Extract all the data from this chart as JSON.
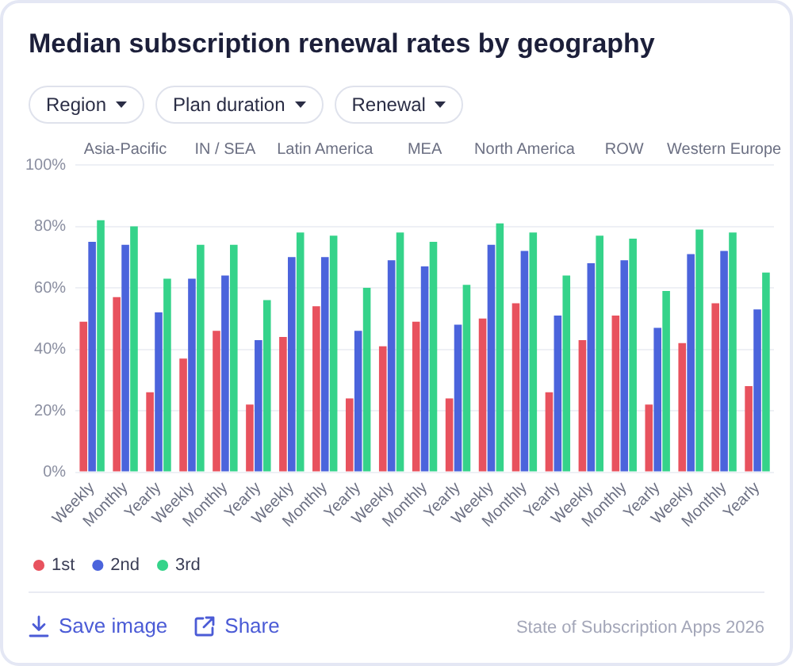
{
  "chart_data": {
    "type": "bar",
    "title": "Median subscription renewal rates by geography",
    "categories": [
      "Weekly",
      "Monthly",
      "Yearly",
      "Weekly",
      "Monthly",
      "Yearly",
      "Weekly",
      "Monthly",
      "Yearly",
      "Weekly",
      "Monthly",
      "Yearly",
      "Weekly",
      "Monthly",
      "Yearly",
      "Weekly",
      "Monthly",
      "Yearly",
      "Weekly",
      "Monthly",
      "Yearly"
    ],
    "series": [
      {
        "name": "1st",
        "color": "#e8525e",
        "values": [
          49,
          57,
          26,
          37,
          46,
          22,
          44,
          54,
          24,
          41,
          49,
          24,
          50,
          55,
          26,
          43,
          51,
          22,
          42,
          55,
          28
        ]
      },
      {
        "name": "2nd",
        "color": "#4b64dc",
        "values": [
          75,
          74,
          52,
          63,
          64,
          43,
          70,
          70,
          46,
          69,
          67,
          48,
          74,
          72,
          51,
          68,
          69,
          47,
          71,
          72,
          53
        ]
      },
      {
        "name": "3rd",
        "color": "#35d38a",
        "values": [
          82,
          80,
          63,
          74,
          74,
          56,
          78,
          77,
          60,
          78,
          75,
          61,
          81,
          78,
          64,
          77,
          76,
          59,
          79,
          78,
          65
        ]
      }
    ],
    "ylim": [
      0,
      100
    ],
    "yticks": [
      {
        "value": 0,
        "label": "0%"
      },
      {
        "value": 20,
        "label": "20%"
      },
      {
        "value": 40,
        "label": "40%"
      },
      {
        "value": 60,
        "label": "60%"
      },
      {
        "value": 80,
        "label": "80%"
      },
      {
        "value": 100,
        "label": "100%"
      }
    ],
    "grid": "y",
    "legend": "bottom left",
    "annotations": [
      "Region",
      "Plan duration",
      "Renewal",
      "Asia-Pacific",
      "IN / SEA",
      "Latin America",
      "MEA",
      "North America",
      "ROW",
      "Western Europe",
      "Save image",
      "Share",
      "State of Subscription Apps 2026"
    ]
  }
}
